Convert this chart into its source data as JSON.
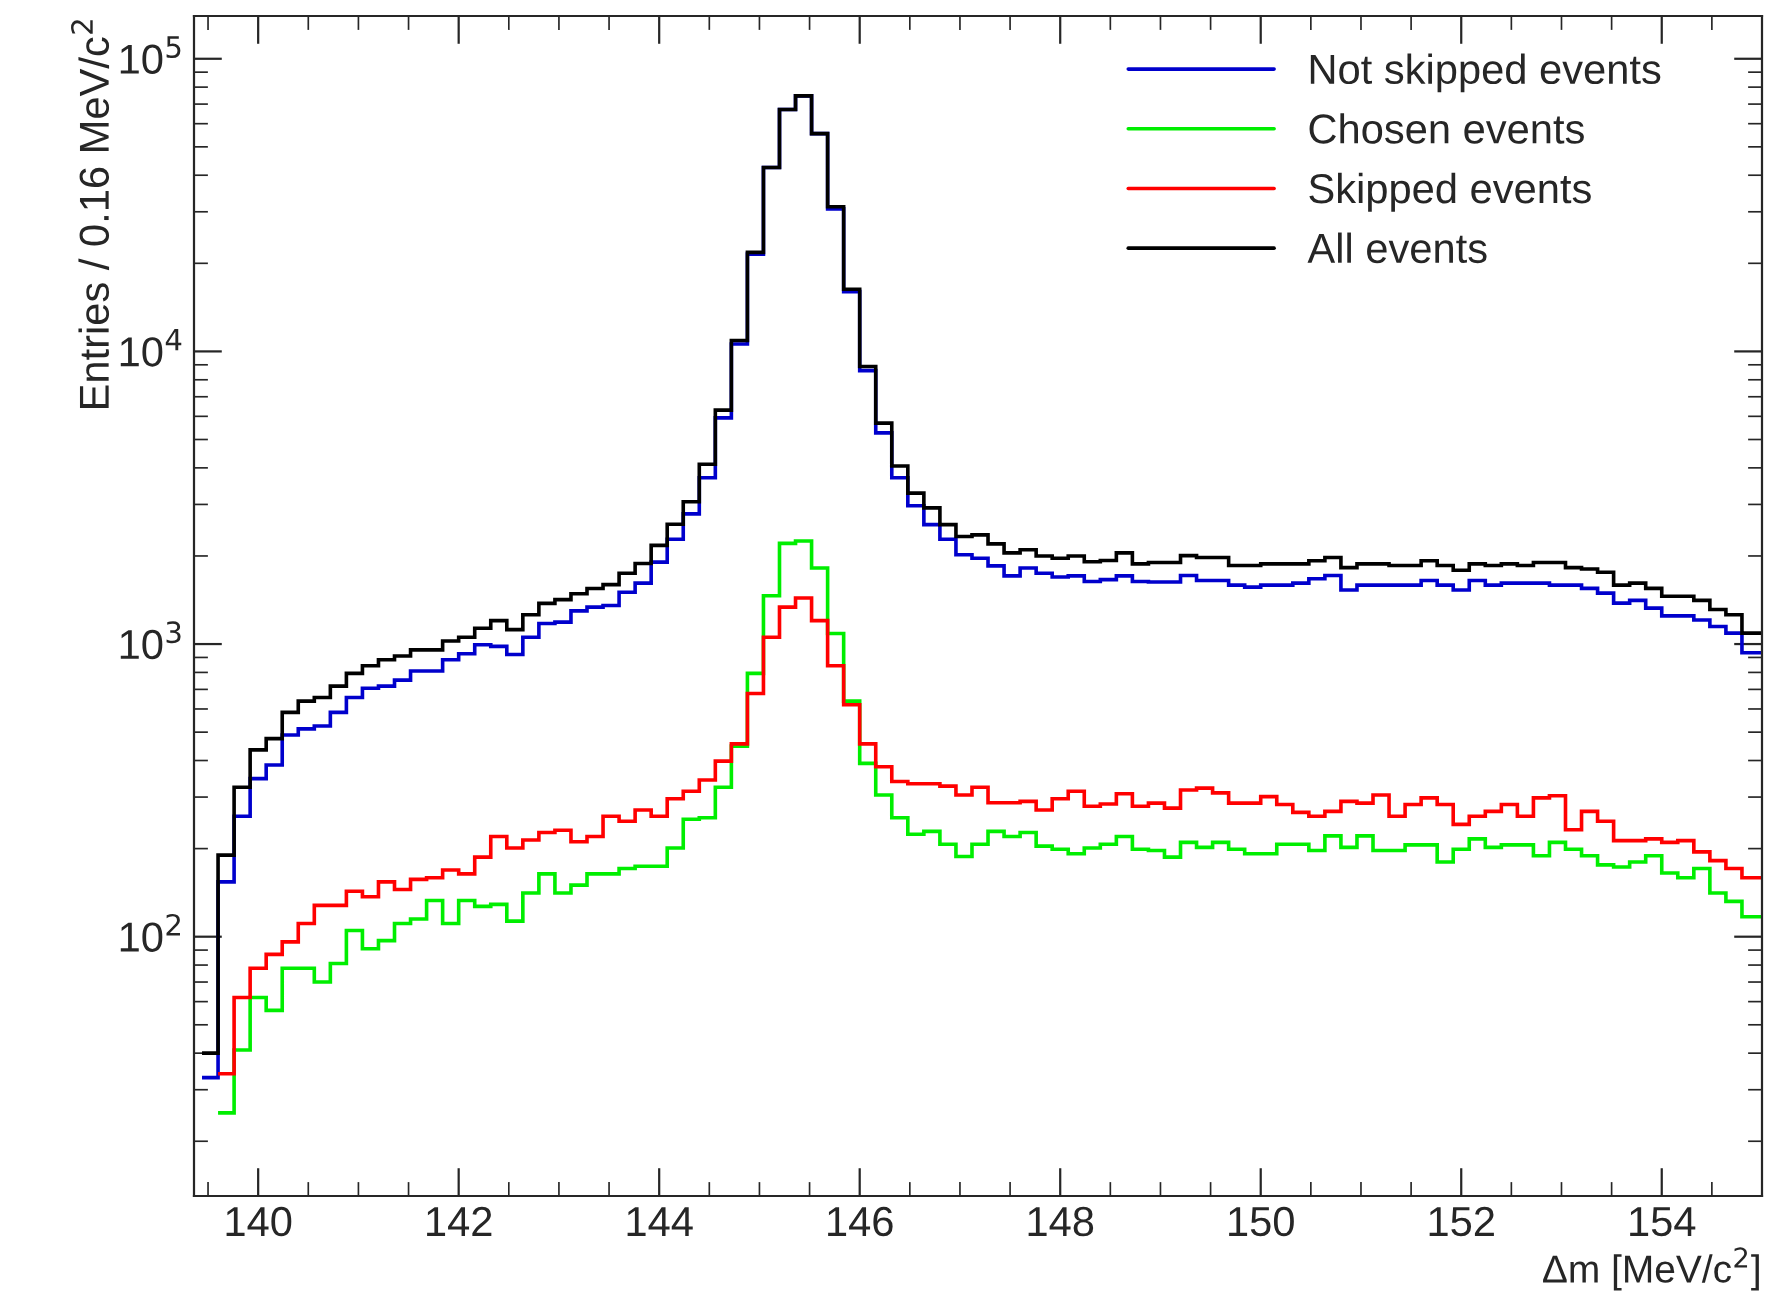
{
  "chart_data": {
    "type": "histogram",
    "xlabel": "Δm [MeV/c$^{2}$]",
    "ylabel": "Entries / 0.16 MeV/c$^{2}$",
    "bins": [
      139.44,
      139.6,
      139.76,
      139.92,
      140.08,
      140.24,
      140.4,
      140.56,
      140.72,
      140.88,
      141.04,
      141.2,
      141.36,
      141.52,
      141.68,
      141.84,
      142,
      142.16,
      142.32,
      142.48,
      142.64,
      142.8,
      142.96,
      143.12,
      143.28,
      143.44,
      143.6,
      143.76,
      143.92,
      144.08,
      144.24,
      144.4,
      144.56,
      144.72,
      144.88,
      145.04,
      145.2,
      145.36,
      145.52,
      145.68,
      145.84,
      146,
      146.16,
      146.32,
      146.48,
      146.64,
      146.8,
      146.96,
      147.12,
      147.28,
      147.44,
      147.6,
      147.76,
      147.92,
      148.08,
      148.24,
      148.4,
      148.56,
      148.72,
      148.88,
      149.04,
      149.2,
      149.36,
      149.52,
      149.68,
      149.84,
      150,
      150.16,
      150.32,
      150.48,
      150.64,
      150.8,
      150.96,
      151.12,
      151.28,
      151.44,
      151.6,
      151.76,
      151.92,
      152.08,
      152.24,
      152.4,
      152.56,
      152.72,
      152.88,
      153.04,
      153.2,
      153.36,
      153.52,
      153.68,
      153.84,
      154,
      154.16,
      154.32,
      154.48,
      154.64,
      154.8,
      154.96,
      155
    ],
    "series": [
      {
        "name": "Not skipped events",
        "color": "#0000cc",
        "values": [
          33,
          154,
          258,
          347,
          386,
          489,
          513,
          525,
          584,
          657,
          706,
          718,
          753,
          809,
          809,
          884,
          927,
          995,
          982,
          921,
          1055,
          1175,
          1188,
          1298,
          1337,
          1355,
          1503,
          1615,
          1905,
          2280,
          2786,
          3700,
          5930,
          10600,
          21500,
          42500,
          67100,
          74700,
          55500,
          30700,
          16000,
          8600,
          5270,
          3700,
          2970,
          2560,
          2280,
          2020,
          1965,
          1850,
          1710,
          1820,
          1745,
          1695,
          1710,
          1635,
          1660,
          1710,
          1635,
          1630,
          1630,
          1715,
          1648,
          1648,
          1590,
          1565,
          1590,
          1590,
          1615,
          1672,
          1715,
          1530,
          1590,
          1590,
          1590,
          1590,
          1648,
          1590,
          1530,
          1648,
          1590,
          1615,
          1615,
          1615,
          1590,
          1590,
          1550,
          1493,
          1380,
          1410,
          1327,
          1248,
          1248,
          1209,
          1148,
          1090,
          934,
          934
        ]
      },
      {
        "name": "Chosen events",
        "color": "#00ee00",
        "bins": [
          139.6,
          139.76,
          139.92,
          140.08,
          140.24,
          140.4,
          140.56,
          140.72,
          140.88,
          141.04,
          141.2,
          141.36,
          141.52,
          141.68,
          141.84,
          142,
          142.16,
          142.32,
          142.48,
          142.64,
          142.8,
          142.96,
          143.12,
          143.28,
          143.44,
          143.6,
          143.76,
          143.92,
          144.08,
          144.24,
          144.4,
          144.56,
          144.72,
          144.88,
          145.04,
          145.2,
          145.36,
          145.52,
          145.68,
          145.84,
          146,
          146.16,
          146.32,
          146.48,
          146.64,
          146.8,
          146.96,
          147.12,
          147.28,
          147.44,
          147.6,
          147.76,
          147.92,
          148.08,
          148.24,
          148.4,
          148.56,
          148.72,
          148.88,
          149.04,
          149.2,
          149.36,
          149.52,
          149.68,
          149.84,
          150,
          150.16,
          150.32,
          150.48,
          150.64,
          150.8,
          150.96,
          151.12,
          151.28,
          151.44,
          151.6,
          151.76,
          151.92,
          152.08,
          152.24,
          152.4,
          152.56,
          152.72,
          152.88,
          153.04,
          153.2,
          153.36,
          153.52,
          153.68,
          153.84,
          154,
          154.16,
          154.32,
          154.48,
          154.64,
          154.8,
          154.96,
          155
        ],
        "values": [
          25,
          41,
          62,
          56,
          78,
          78,
          70,
          81,
          105,
          91,
          97,
          111,
          115,
          133,
          111,
          133,
          127,
          129,
          113,
          141,
          164,
          141,
          150,
          164,
          164,
          171,
          174,
          174,
          201,
          252,
          255,
          324,
          448,
          794,
          1462,
          2208,
          2249,
          1820,
          1087,
          638,
          391,
          305,
          255,
          224,
          229,
          207,
          188,
          207,
          229,
          220,
          227,
          204,
          199,
          192,
          201,
          207,
          220,
          199,
          197,
          187,
          210,
          202,
          210,
          199,
          192,
          192,
          207,
          207,
          197,
          221,
          202,
          221,
          197,
          197,
          206,
          206,
          180,
          199,
          216,
          202,
          206,
          206,
          189,
          210,
          199,
          189,
          176,
          173,
          180,
          189,
          165,
          159,
          171,
          141,
          132,
          117,
          117
        ]
      },
      {
        "name": "Skipped events",
        "color": "#ff0000",
        "bins": [
          139.6,
          139.76,
          139.92,
          140.08,
          140.24,
          140.4,
          140.56,
          140.72,
          140.88,
          141.04,
          141.2,
          141.36,
          141.52,
          141.68,
          141.84,
          142,
          142.16,
          142.32,
          142.48,
          142.64,
          142.8,
          142.96,
          143.12,
          143.28,
          143.44,
          143.6,
          143.76,
          143.92,
          144.08,
          144.24,
          144.4,
          144.56,
          144.72,
          144.88,
          145.04,
          145.2,
          145.36,
          145.52,
          145.68,
          145.84,
          146,
          146.16,
          146.32,
          146.48,
          146.64,
          146.8,
          146.96,
          147.12,
          147.28,
          147.44,
          147.6,
          147.76,
          147.92,
          148.08,
          148.24,
          148.4,
          148.56,
          148.72,
          148.88,
          149.04,
          149.2,
          149.36,
          149.52,
          149.68,
          149.84,
          150,
          150.16,
          150.32,
          150.48,
          150.64,
          150.8,
          150.96,
          151.12,
          151.28,
          151.44,
          151.6,
          151.76,
          151.92,
          152.08,
          152.24,
          152.4,
          152.56,
          152.72,
          152.88,
          153.04,
          153.2,
          153.36,
          153.52,
          153.68,
          153.84,
          154,
          154.16,
          154.32,
          154.48,
          154.64,
          154.8,
          154.96,
          155
        ],
        "values": [
          34,
          62,
          78,
          87,
          96,
          111,
          128,
          128,
          143,
          137,
          154,
          145,
          157,
          159,
          169,
          164,
          187,
          220,
          201,
          214,
          227,
          231,
          211,
          220,
          258,
          248,
          271,
          258,
          296,
          314,
          343,
          398,
          456,
          678,
          1055,
          1337,
          1436,
          1202,
          843,
          620,
          456,
          381,
          339,
          333,
          333,
          327,
          305,
          324,
          287,
          287,
          290,
          271,
          296,
          314,
          279,
          284,
          308,
          279,
          286,
          275,
          317,
          322,
          310,
          286,
          286,
          301,
          283,
          266,
          258,
          268,
          290,
          286,
          305,
          258,
          283,
          298,
          283,
          242,
          258,
          268,
          283,
          258,
          298,
          303,
          232,
          268,
          248,
          213,
          213,
          216,
          210,
          213,
          195,
          182,
          171,
          159,
          159
        ]
      },
      {
        "name": "All events",
        "color": "#000000",
        "values": [
          40,
          190,
          324,
          435,
          475,
          584,
          638,
          657,
          718,
          794,
          843,
          884,
          910,
          955,
          955,
          1024,
          1055,
          1133,
          1202,
          1120,
          1260,
          1377,
          1419,
          1486,
          1549,
          1596,
          1746,
          1885,
          2174,
          2566,
          3064,
          4115,
          6300,
          10900,
          21800,
          42500,
          67100,
          74700,
          55500,
          31200,
          16300,
          8880,
          5690,
          4060,
          3280,
          2920,
          2560,
          2330,
          2360,
          2200,
          2050,
          2100,
          2000,
          1965,
          2000,
          1910,
          1930,
          2050,
          1880,
          1900,
          1900,
          2005,
          1975,
          1975,
          1855,
          1855,
          1880,
          1880,
          1880,
          1925,
          1975,
          1825,
          1880,
          1880,
          1855,
          1855,
          1925,
          1855,
          1787,
          1880,
          1855,
          1880,
          1855,
          1900,
          1900,
          1825,
          1805,
          1760,
          1590,
          1615,
          1550,
          1456,
          1456,
          1410,
          1312,
          1260,
          1090,
          1090
        ]
      }
    ],
    "xlim": [
      139.36,
      155
    ],
    "xticks": [
      140,
      142,
      144,
      146,
      148,
      150,
      152,
      154
    ],
    "ylim": [
      13,
      140000
    ],
    "log": true,
    "yticks": [
      {
        "value": 100,
        "label": "10$^{2}$"
      },
      {
        "value": 1000,
        "label": "10$^{3}$"
      },
      {
        "value": 10000,
        "label": "10$^{4}$"
      },
      {
        "value": 100000,
        "label": "10$^{5}$"
      }
    ],
    "legend": "top right",
    "grid": false
  }
}
